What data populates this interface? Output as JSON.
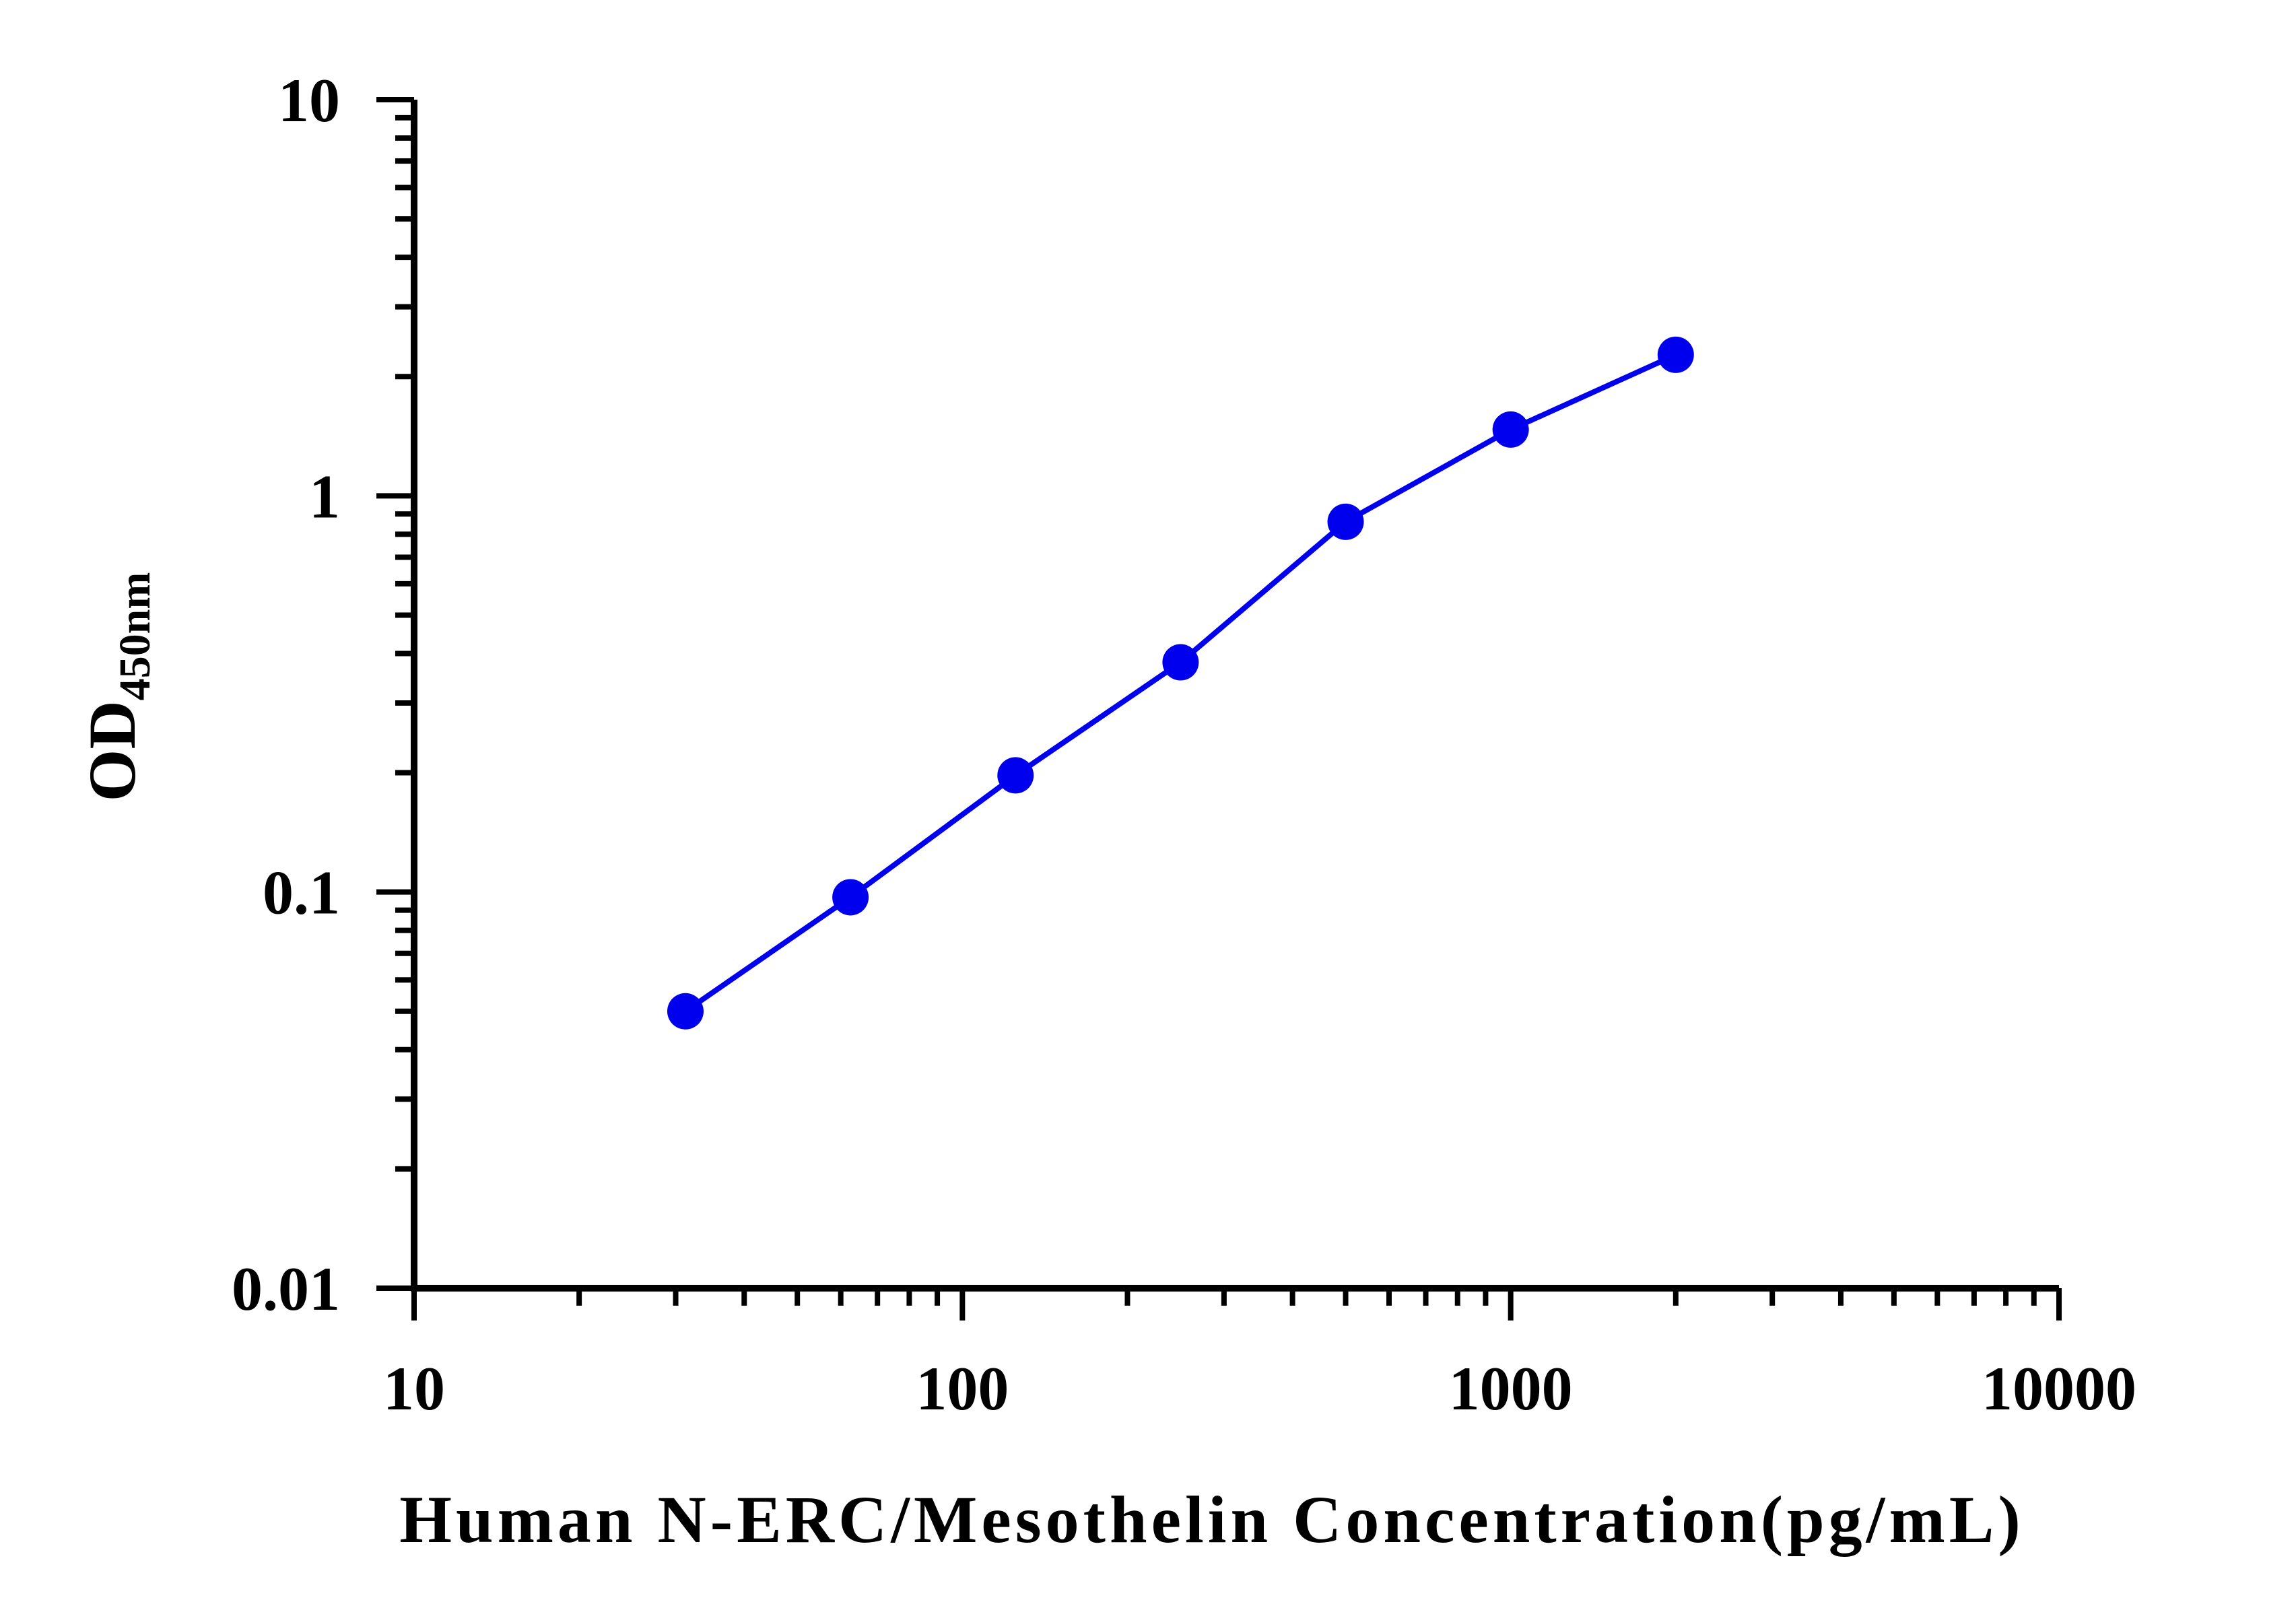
{
  "chart_data": {
    "type": "scatter",
    "x_scale": "log",
    "y_scale": "log",
    "xlim": [
      10,
      10000
    ],
    "ylim": [
      0.01,
      10
    ],
    "x_ticks": [
      "10",
      "100",
      "1000",
      "10000"
    ],
    "y_ticks": [
      "0.01",
      "0.1",
      "1",
      "10"
    ],
    "xlabel": "Human N-ERC/Mesothelin Concentration(pg/mL)",
    "ylabel": "OD",
    "ylabel_subscript": "450nm",
    "grid": false,
    "series": [
      {
        "color": "#0000ee",
        "connected": true,
        "points": [
          {
            "x": 31.25,
            "y": 0.05
          },
          {
            "x": 62.5,
            "y": 0.097
          },
          {
            "x": 125,
            "y": 0.197
          },
          {
            "x": 250,
            "y": 0.38
          },
          {
            "x": 500,
            "y": 0.86
          },
          {
            "x": 1000,
            "y": 1.47
          },
          {
            "x": 2000,
            "y": 2.27
          }
        ]
      }
    ]
  }
}
